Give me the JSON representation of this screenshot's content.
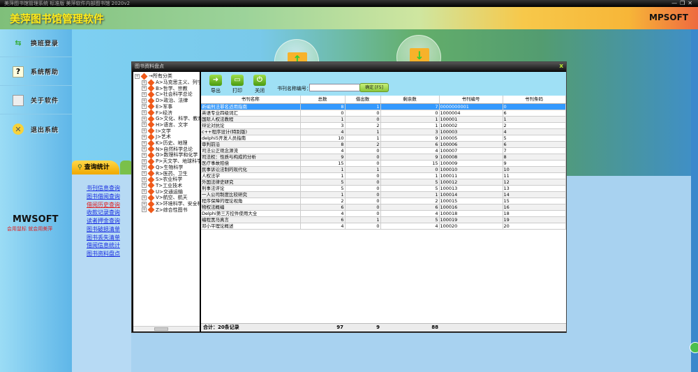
{
  "window": {
    "title": "美萍图书馆管理系统 标准版 美萍软件内部图书馆 2020v2",
    "controls": [
      "—",
      "❐",
      "✕"
    ]
  },
  "header": {
    "app_title": "美萍图书馆管理软件",
    "brand": "MPSOFT"
  },
  "sidebar": {
    "items": [
      {
        "label": "换班登录",
        "icon": "switch-arrows-icon"
      },
      {
        "label": "系统帮助",
        "icon": "help-icon"
      },
      {
        "label": "关于软件",
        "icon": "document-icon"
      },
      {
        "label": "退出系统",
        "icon": "exit-icon"
      }
    ],
    "logo": "MWSOFT",
    "slogan": "会用鼠标  就会用美萍"
  },
  "query_panel": {
    "tab_label": "查询统计",
    "links": [
      {
        "label": "书刊信息查询",
        "active": false
      },
      {
        "label": "图书借阅查询",
        "active": false
      },
      {
        "label": "借阅历史查询",
        "active": true
      },
      {
        "label": "收款记录查询",
        "active": false
      },
      {
        "label": "读者押金查询",
        "active": false
      },
      {
        "label": "图书破损清单",
        "active": false
      },
      {
        "label": "图书丢失清单",
        "active": false
      },
      {
        "label": "借阅信息统计",
        "active": false
      },
      {
        "label": "图书资料盘点",
        "active": false
      }
    ]
  },
  "dialog": {
    "title": "图书资料盘点",
    "close": "x",
    "tree": {
      "root": "→所有分类",
      "nodes": [
        "A>马克思主义、列宁主义",
        "B>哲学、宗教",
        "C>社会科学总论",
        "D>政治、法律",
        "E>军事",
        "F>经济",
        "G>文化、科学、教育、体育",
        "H>语言、文字",
        "I>文学",
        "J>艺术",
        "K>历史、地理",
        "N>自然科学总论",
        "O>数理科学和化学",
        "P>天文学、地球科学",
        "Q>生物科学",
        "R>医药、卫生",
        "S>农业科学",
        "T>工业技术",
        "U>交通运输",
        "V>航空、航天",
        "X>环境科学、安全科学",
        "Z>综合性图书"
      ]
    },
    "toolbar": {
      "export": "导出",
      "print": "打印",
      "close": "关闭",
      "search_label": "书刊名称编号：",
      "search_value": "",
      "ok": "确定 [F5]"
    },
    "columns": [
      "书刊名称",
      "总数",
      "借出数",
      "剩余数",
      "书刊编号",
      "书刊条码"
    ],
    "rows": [
      [
        "新编刑法罪名适用指南",
        "8",
        "1",
        "7",
        "0000000001",
        "0"
      ],
      [
        "英语专业四级词汇",
        "0",
        "0",
        "0",
        "1000004",
        "6"
      ],
      [
        "国际人权法教程",
        "1",
        "0",
        "1",
        "100001",
        "1"
      ],
      [
        "辩论对抗论",
        "3",
        "2",
        "1",
        "100002",
        "2"
      ],
      [
        "c++程序设计(特别版)",
        "4",
        "1",
        "3",
        "100003",
        "4"
      ],
      [
        "delphi5开发人员指南",
        "10",
        "1",
        "9",
        "100005",
        "5"
      ],
      [
        "审判前沿",
        "8",
        "2",
        "6",
        "100006",
        "6"
      ],
      [
        "司法公正观念源流",
        "4",
        "0",
        "4",
        "100007",
        "7"
      ],
      [
        "司法权：性质与构成的分析",
        "9",
        "0",
        "9",
        "100008",
        "8"
      ],
      [
        "医疗事故赔偿",
        "15",
        "0",
        "15",
        "100009",
        "9"
      ],
      [
        "民事诉讼法制的现代化",
        "1",
        "1",
        "0",
        "100010",
        "10"
      ],
      [
        "人权法学",
        "1",
        "0",
        "1",
        "100011",
        "11"
      ],
      [
        "外国法律史研究",
        "5",
        "0",
        "5",
        "100012",
        "12"
      ],
      [
        "刑事法评论",
        "5",
        "0",
        "5",
        "100013",
        "13"
      ],
      [
        "一人公司制度比较研究",
        "1",
        "0",
        "1",
        "100014",
        "14"
      ],
      [
        "程序保障的理论视角",
        "2",
        "0",
        "2",
        "100015",
        "15"
      ],
      [
        "物权法概编",
        "6",
        "0",
        "6",
        "100016",
        "16"
      ],
      [
        "Delphi第三方控件使用大全",
        "4",
        "0",
        "4",
        "100018",
        "18"
      ],
      [
        "编程黑马真言",
        "6",
        "1",
        "5",
        "100019",
        "19"
      ],
      [
        "邓小平理论概述",
        "4",
        "0",
        "4",
        "100020",
        "20"
      ]
    ],
    "selected_row": 0,
    "footer": {
      "label": "合计：20条记录",
      "total": "97",
      "borrowed": "9",
      "remaining": "88"
    }
  }
}
